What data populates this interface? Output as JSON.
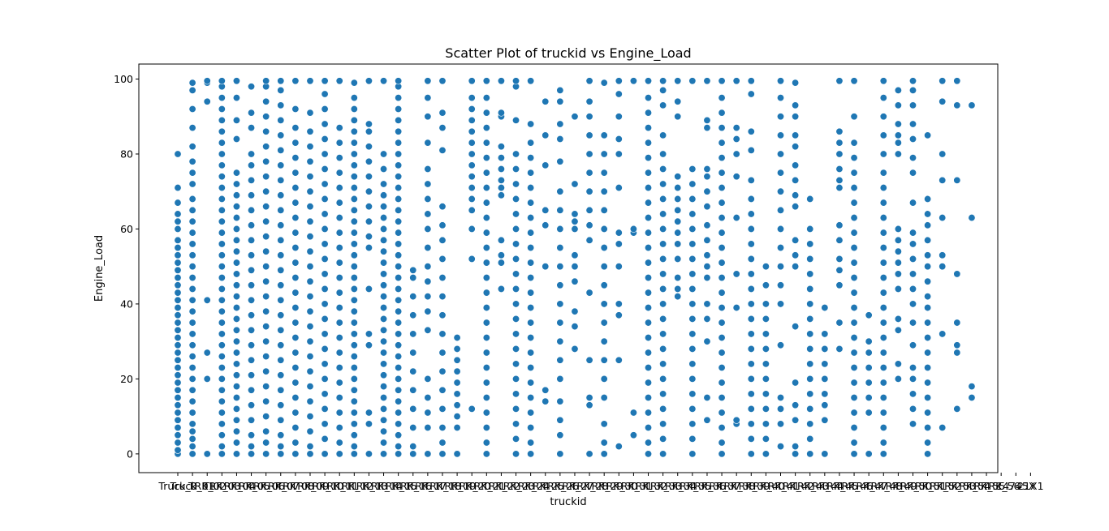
{
  "chart_data": {
    "type": "scatter",
    "title": "Scatter Plot of truckid vs Engine_Load",
    "xlabel": "truckid",
    "ylabel": "Engine_Load",
    "ylim": [
      -5,
      104
    ],
    "yticks": [
      0,
      20,
      40,
      60,
      80,
      100
    ],
    "grid": false,
    "legend": "none",
    "marker_color": "#1f77b4",
    "categories": [
      "Truck_0",
      "Truck_01",
      "TRK_02",
      "TRK_03",
      "TRK_04",
      "TRK_05",
      "TRK_06",
      "TRK_07",
      "TRK_08",
      "TRK_09",
      "TRK_10",
      "TRK_11",
      "TRK_12",
      "TRK_13",
      "TRK_14",
      "TRK_15",
      "TRK_16",
      "TRK_17",
      "TRK_18",
      "TRK_19",
      "TRK_20",
      "TRK_21",
      "TRK_22",
      "TRK_23",
      "TRK_24",
      "TRK_25",
      "TRK_26",
      "TRK_27",
      "TRK_28",
      "TRK_29",
      "TRK_30",
      "TRK_31",
      "TRK_32",
      "TRK_33",
      "TRK_34",
      "TRK_35",
      "TRK_36",
      "TRK_37",
      "TRK_38",
      "TRK_39",
      "TRK_40",
      "TRK_41",
      "TRK_42",
      "TRK_43",
      "TRK_44",
      "TRK_45",
      "TRK_46",
      "TRK_47",
      "TRK_48",
      "TRK_49",
      "TRK_50",
      "TRK_51",
      "TRK_52",
      "TRK_53",
      "TRK_54",
      "TRK_55",
      "TRK_56",
      "14745X",
      "21X1"
    ],
    "series": [
      {
        "points_by_category": [
          [
            0,
            1,
            3,
            5,
            7,
            9,
            11,
            13,
            15,
            17,
            19,
            21,
            23,
            25,
            27,
            29,
            31,
            33,
            35,
            37,
            39,
            41,
            43,
            45,
            47,
            49,
            51,
            53,
            55,
            57,
            60,
            62,
            64,
            67,
            71,
            80
          ],
          [
            0,
            2,
            4,
            6,
            8,
            11,
            14,
            17,
            20,
            23,
            26,
            29,
            32,
            35,
            38,
            41,
            44,
            47,
            50,
            53,
            56,
            59,
            62,
            65,
            68,
            72,
            75,
            78,
            82,
            87,
            92,
            97,
            99
          ],
          [
            0,
            20,
            27,
            41,
            94,
            99,
            99.5
          ],
          [
            0,
            2,
            5,
            8,
            11,
            14,
            17,
            20,
            23,
            26,
            29,
            32,
            35,
            38,
            41,
            44,
            47,
            50,
            53,
            56,
            59,
            62,
            65,
            68,
            71,
            74,
            77,
            80,
            83,
            86,
            89,
            92,
            95,
            98,
            99.5
          ],
          [
            0,
            3,
            6,
            9,
            12,
            15,
            18,
            21,
            24,
            27,
            30,
            33,
            36,
            39,
            42,
            45,
            48,
            51,
            54,
            57,
            60,
            63,
            66,
            69,
            72,
            75,
            84,
            89,
            95,
            99.5
          ],
          [
            0,
            2,
            5,
            9,
            13,
            17,
            21,
            25,
            29,
            33,
            37,
            41,
            45,
            49,
            53,
            57,
            61,
            65,
            69,
            73,
            77,
            80,
            87,
            91,
            98
          ],
          [
            0,
            3,
            6,
            10,
            14,
            18,
            22,
            26,
            30,
            34,
            38,
            42,
            46,
            50,
            54,
            58,
            62,
            66,
            70,
            74,
            78,
            82,
            86,
            90,
            94,
            98,
            99.5
          ],
          [
            0,
            2,
            5,
            9,
            13,
            17,
            21,
            25,
            29,
            33,
            37,
            41,
            45,
            49,
            53,
            57,
            61,
            65,
            69,
            73,
            77,
            81,
            85,
            89,
            93,
            97,
            99.5
          ],
          [
            0,
            3,
            7,
            11,
            15,
            19,
            23,
            27,
            31,
            35,
            39,
            43,
            47,
            51,
            55,
            59,
            63,
            67,
            71,
            75,
            79,
            83,
            87,
            92,
            99.5
          ],
          [
            0,
            2,
            6,
            10,
            14,
            18,
            22,
            26,
            30,
            34,
            38,
            42,
            46,
            50,
            54,
            58,
            62,
            66,
            70,
            74,
            78,
            82,
            86,
            91,
            99.5
          ],
          [
            0,
            4,
            8,
            12,
            16,
            20,
            24,
            28,
            32,
            36,
            40,
            44,
            48,
            52,
            56,
            60,
            64,
            68,
            72,
            76,
            80,
            84,
            88,
            92,
            96,
            99.5
          ],
          [
            0,
            3,
            7,
            11,
            15,
            19,
            23,
            27,
            31,
            35,
            39,
            43,
            47,
            51,
            55,
            59,
            63,
            67,
            71,
            75,
            79,
            83,
            87,
            99.5
          ],
          [
            0,
            2,
            5,
            8,
            11,
            14,
            17,
            20,
            23,
            26,
            29,
            32,
            35,
            38,
            41,
            44,
            47,
            50,
            53,
            56,
            59,
            62,
            65,
            68,
            71,
            74,
            77,
            80,
            83,
            86,
            89,
            92,
            95,
            99
          ],
          [
            0,
            8,
            11,
            29,
            32,
            44,
            55,
            58,
            62,
            66,
            70,
            74,
            78,
            82,
            86,
            88,
            99.5
          ],
          [
            0,
            3,
            6,
            9,
            12,
            15,
            18,
            21,
            24,
            27,
            30,
            33,
            36,
            39,
            42,
            45,
            48,
            51,
            54,
            57,
            60,
            63,
            66,
            69,
            72,
            76,
            80,
            99.5
          ],
          [
            0,
            2,
            5,
            8,
            11,
            14,
            17,
            20,
            23,
            26,
            29,
            32,
            35,
            38,
            41,
            44,
            47,
            50,
            53,
            56,
            59,
            62,
            65,
            68,
            71,
            74,
            77,
            80,
            83,
            86,
            89,
            92,
            95,
            98,
            99.5
          ],
          [
            0,
            2,
            7,
            12,
            17,
            22,
            27,
            32,
            37,
            42,
            47,
            49
          ],
          [
            0,
            7,
            11,
            15,
            20,
            33,
            38,
            42,
            46,
            50,
            55,
            60,
            64,
            68,
            72,
            76,
            83,
            90,
            95,
            99.5
          ],
          [
            0,
            3,
            7,
            12,
            17,
            22,
            27,
            32,
            37,
            42,
            47,
            52,
            57,
            61,
            66,
            81,
            87,
            91,
            99.5
          ],
          [
            0,
            7,
            10,
            13,
            16,
            19,
            22,
            25,
            28,
            31
          ],
          [
            12,
            52,
            60,
            65,
            68,
            71,
            74,
            77,
            80,
            83,
            86,
            89,
            92,
            95,
            99.5
          ],
          [
            0,
            3,
            7,
            11,
            15,
            19,
            23,
            27,
            31,
            35,
            39,
            43,
            47,
            51,
            55,
            59,
            63,
            67,
            71,
            75,
            79,
            83,
            87,
            91,
            95,
            99.5
          ],
          [
            44,
            51,
            53,
            57,
            69,
            71,
            73,
            76,
            79,
            82,
            90,
            91,
            99.5
          ],
          [
            0,
            4,
            8,
            12,
            16,
            20,
            24,
            28,
            32,
            36,
            40,
            44,
            48,
            52,
            56,
            60,
            64,
            68,
            72,
            76,
            80,
            89,
            98,
            99.5
          ],
          [
            0,
            3,
            7,
            11,
            15,
            19,
            23,
            27,
            31,
            35,
            39,
            43,
            47,
            51,
            55,
            59,
            63,
            67,
            71,
            75,
            79,
            83,
            88,
            99.5
          ],
          [
            14,
            17,
            50,
            61,
            65,
            77,
            85,
            94
          ],
          [
            0,
            5,
            9,
            14,
            20,
            25,
            30,
            35,
            40,
            45,
            50,
            55,
            60,
            65,
            70,
            78,
            84,
            88,
            94,
            97
          ],
          [
            28,
            34,
            38,
            46,
            50,
            53,
            60,
            62,
            64,
            72,
            90
          ],
          [
            0,
            13,
            15,
            25,
            43,
            57,
            61,
            65,
            70,
            75,
            80,
            85,
            90,
            94,
            99.5
          ],
          [
            0,
            3,
            8,
            15,
            20,
            25,
            30,
            35,
            40,
            45,
            50,
            55,
            60,
            65,
            70,
            75,
            80,
            85,
            99
          ],
          [
            2,
            25,
            37,
            40,
            50,
            56,
            59,
            71,
            80,
            84,
            90,
            96,
            99.5
          ],
          [
            5,
            11,
            59,
            60,
            99.5
          ],
          [
            0,
            3,
            7,
            11,
            15,
            19,
            23,
            27,
            31,
            35,
            39,
            43,
            47,
            51,
            55,
            59,
            63,
            67,
            71,
            75,
            79,
            83,
            87,
            91,
            95,
            99.5
          ],
          [
            0,
            4,
            8,
            12,
            16,
            20,
            24,
            28,
            32,
            36,
            40,
            44,
            48,
            52,
            56,
            60,
            64,
            68,
            72,
            76,
            80,
            85,
            93,
            97,
            99.5
          ],
          [
            42,
            44,
            47,
            52,
            56,
            59,
            62,
            65,
            68,
            71,
            74,
            90,
            94,
            99.5
          ],
          [
            0,
            4,
            8,
            12,
            16,
            20,
            24,
            28,
            32,
            36,
            40,
            44,
            48,
            52,
            56,
            60,
            64,
            68,
            72,
            76,
            99.5
          ],
          [
            9,
            15,
            30,
            36,
            40,
            47,
            50,
            53,
            57,
            61,
            66,
            70,
            74,
            76,
            87,
            89,
            99.5
          ],
          [
            0,
            3,
            7,
            11,
            15,
            19,
            23,
            27,
            31,
            35,
            39,
            43,
            47,
            51,
            55,
            59,
            63,
            67,
            71,
            75,
            79,
            83,
            87,
            91,
            95,
            99.5
          ],
          [
            8,
            9,
            39,
            48,
            63,
            74,
            80,
            84,
            87,
            99.5
          ],
          [
            0,
            4,
            8,
            12,
            16,
            20,
            24,
            28,
            32,
            36,
            40,
            44,
            48,
            52,
            56,
            60,
            64,
            68,
            73,
            81,
            86,
            96,
            99.5
          ],
          [
            0,
            4,
            8,
            12,
            16,
            20,
            24,
            28,
            32,
            36,
            40,
            45,
            50
          ],
          [
            2,
            8,
            12,
            15,
            29,
            40,
            45,
            50,
            55,
            60,
            65,
            70,
            75,
            80,
            85,
            90,
            95,
            99.5
          ],
          [
            0,
            2,
            9,
            13,
            19,
            34,
            50,
            53,
            57,
            66,
            69,
            73,
            77,
            82,
            85,
            90,
            93,
            99
          ],
          [
            0,
            4,
            8,
            12,
            16,
            20,
            24,
            28,
            32,
            36,
            40,
            44,
            48,
            52,
            56,
            60,
            68
          ],
          [
            0,
            9,
            13,
            16,
            20,
            24,
            28,
            32,
            39
          ],
          [
            28,
            35,
            45,
            49,
            52,
            57,
            61,
            71,
            73,
            76,
            80,
            83,
            86,
            99.5
          ],
          [
            0,
            3,
            7,
            11,
            15,
            19,
            23,
            27,
            31,
            35,
            39,
            43,
            47,
            51,
            55,
            59,
            63,
            67,
            71,
            75,
            79,
            83,
            90,
            99.5
          ],
          [
            0,
            11,
            15,
            19,
            23,
            27,
            30,
            37
          ],
          [
            0,
            3,
            7,
            11,
            15,
            19,
            23,
            27,
            31,
            35,
            39,
            43,
            47,
            51,
            55,
            59,
            63,
            67,
            71,
            75,
            80,
            85,
            90,
            95,
            99.5
          ],
          [
            20,
            24,
            33,
            36,
            44,
            48,
            51,
            54,
            57,
            60,
            80,
            83,
            85,
            88,
            93,
            97
          ],
          [
            8,
            12,
            16,
            20,
            23,
            29,
            35,
            40,
            44,
            48,
            52,
            56,
            59,
            67,
            75,
            79,
            84,
            88,
            93,
            97,
            99.5
          ],
          [
            0,
            3,
            7,
            11,
            15,
            19,
            23,
            27,
            31,
            35,
            39,
            42,
            46,
            50,
            53,
            57,
            61,
            64,
            68,
            85
          ],
          [
            7,
            32,
            50,
            53,
            63,
            73,
            80,
            94,
            99.5
          ],
          [
            12,
            27,
            29,
            35,
            48,
            73,
            93,
            99.5
          ],
          [
            15,
            18,
            63,
            93
          ],
          [],
          [],
          [],
          []
        ]
      }
    ]
  }
}
